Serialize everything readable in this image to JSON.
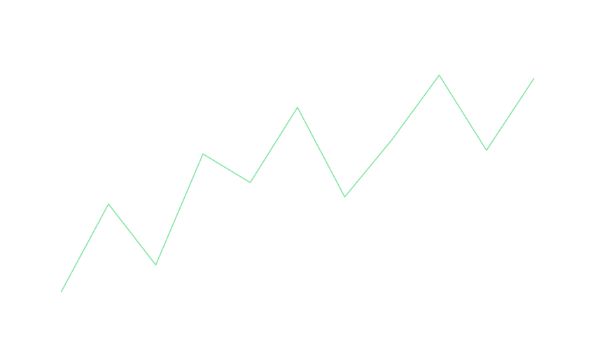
{
  "chart_data": {
    "type": "line",
    "title": "",
    "xlabel": "",
    "ylabel": "",
    "x": [
      0,
      1,
      2,
      3,
      4,
      5,
      6,
      7,
      8,
      9,
      10
    ],
    "xlim": [
      -1,
      11
    ],
    "ylim": [
      0,
      100
    ],
    "grid": false,
    "legend": "none",
    "series": [
      {
        "color": "#86e5a6",
        "values": [
          18.5,
          43,
          26,
          57,
          49,
          70,
          45,
          61,
          79,
          58,
          78
        ]
      }
    ]
  }
}
